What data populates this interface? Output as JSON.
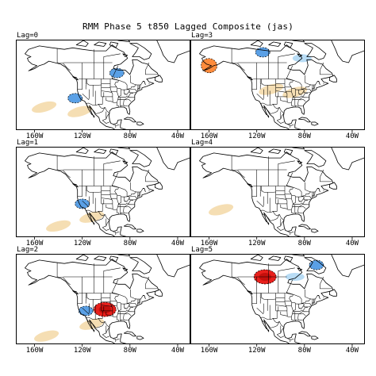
{
  "title": "RMM Phase 5 t850 Lagged Composite (jas)",
  "longitude_labels": [
    "160W",
    "120W",
    "80W",
    "40W"
  ],
  "colors": {
    "light_warm": "#f5deb3",
    "warm": "#ff8c3c",
    "hot": "#e8201c",
    "light_cool": "#b8dcf5",
    "cool": "#5aa0e6",
    "coastline": "#000000",
    "borders": "#000000"
  },
  "panels": [
    {
      "label": "Lag=0",
      "anomalies": [
        {
          "sign": "cool",
          "lon": -91,
          "lat": 53,
          "note": "Hudson Bay"
        },
        {
          "sign": "cool",
          "lon": -126,
          "lat": 36
        },
        {
          "sign": "light_warm",
          "lon": -152,
          "lat": 30
        },
        {
          "sign": "light_warm",
          "lon": -122,
          "lat": 27
        }
      ]
    },
    {
      "label": "Lag=3",
      "anomalies": [
        {
          "sign": "warm",
          "lon": -160,
          "lat": 58
        },
        {
          "sign": "cool",
          "lon": -115,
          "lat": 67
        },
        {
          "sign": "light_cool",
          "lon": -82,
          "lat": 63
        },
        {
          "sign": "light_warm",
          "lon": -108,
          "lat": 42
        },
        {
          "sign": "light_warm",
          "lon": -88,
          "lat": 40
        }
      ]
    },
    {
      "label": "Lag=1",
      "anomalies": [
        {
          "sign": "cool",
          "lon": -120,
          "lat": 37
        },
        {
          "sign": "light_warm",
          "lon": -112,
          "lat": 28
        },
        {
          "sign": "light_warm",
          "lon": -140,
          "lat": 22
        }
      ]
    },
    {
      "label": "Lag=4",
      "anomalies": [
        {
          "sign": "light_warm",
          "lon": -150,
          "lat": 33
        }
      ]
    },
    {
      "label": "Lag=2",
      "anomalies": [
        {
          "sign": "cool",
          "lon": -117,
          "lat": 37
        },
        {
          "sign": "hot",
          "lon": -101,
          "lat": 38
        },
        {
          "sign": "light_warm",
          "lon": -112,
          "lat": 28
        },
        {
          "sign": "light_warm",
          "lon": -150,
          "lat": 20
        }
      ]
    },
    {
      "label": "Lag=5",
      "anomalies": [
        {
          "sign": "hot",
          "lon": -113,
          "lat": 60
        },
        {
          "sign": "cool",
          "lon": -70,
          "lat": 68
        },
        {
          "sign": "light_cool",
          "lon": -88,
          "lat": 60
        }
      ]
    }
  ]
}
